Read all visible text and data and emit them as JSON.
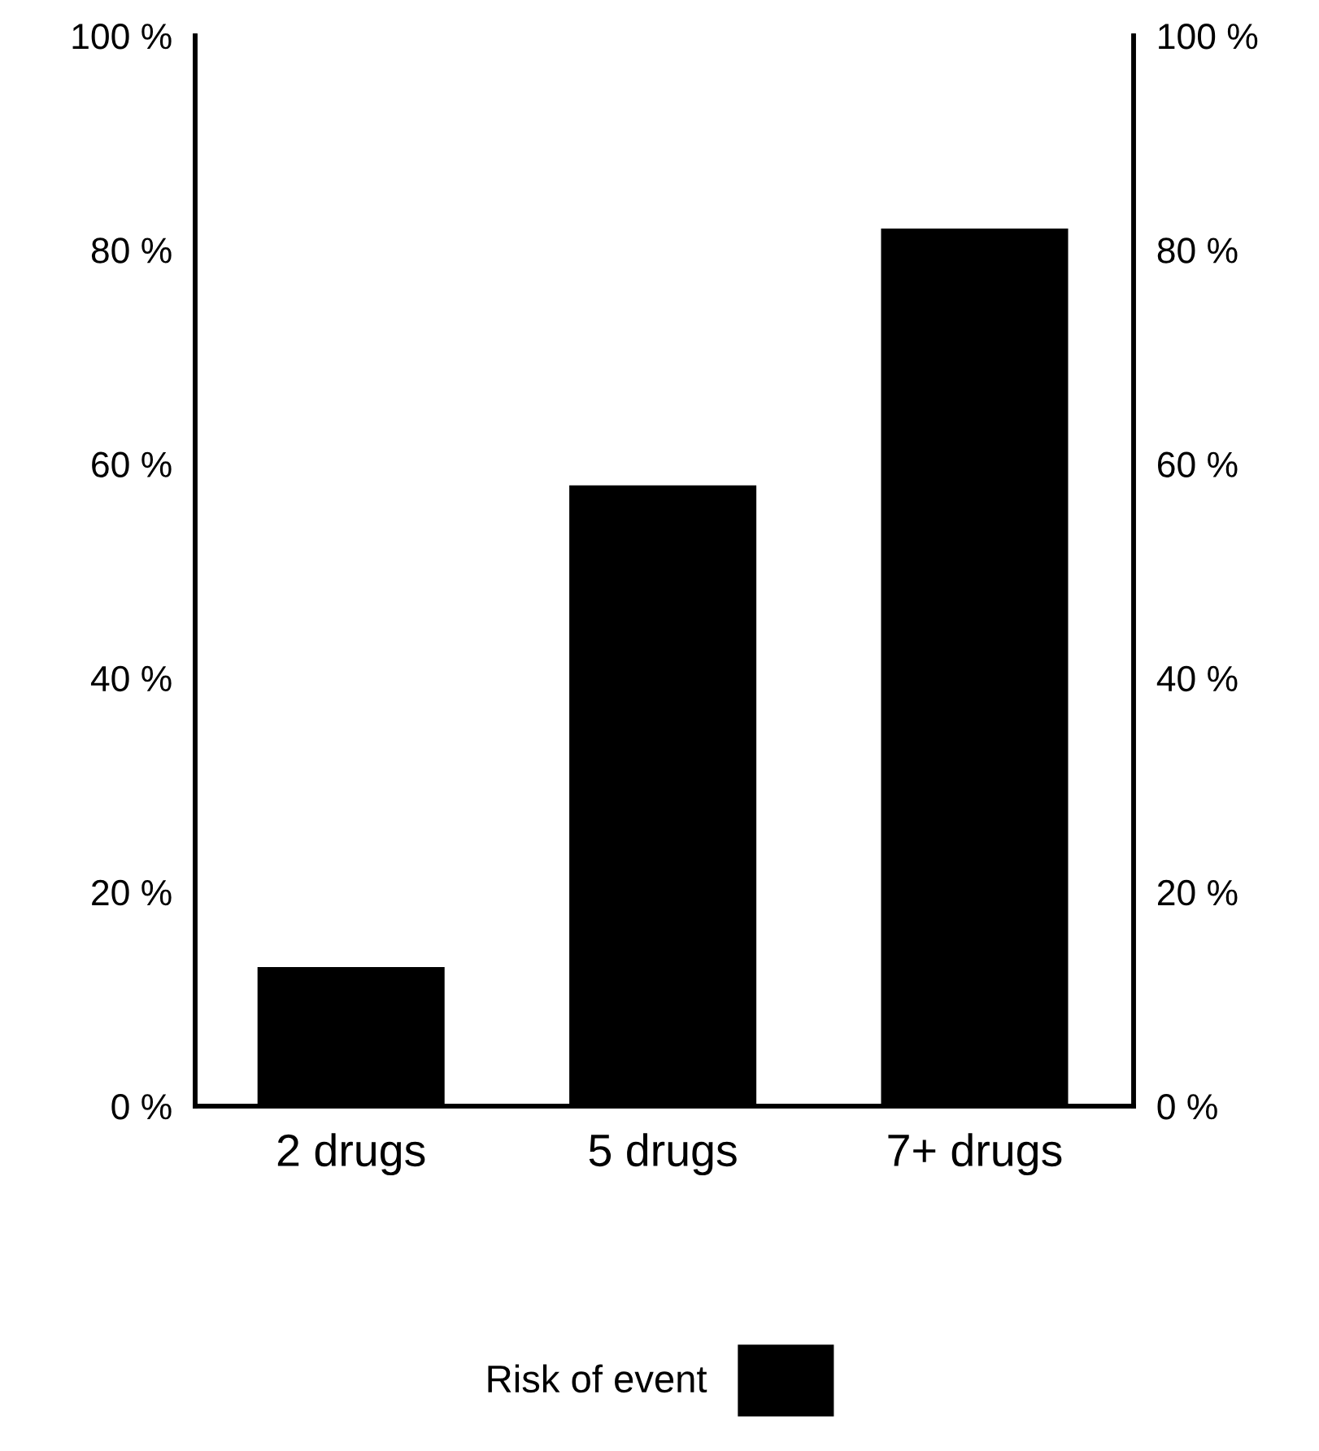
{
  "chart_data": {
    "type": "bar",
    "categories": [
      "2 drugs",
      "5 drugs",
      "7+ drugs"
    ],
    "series": [
      {
        "name": "Risk of event",
        "color": "#000000",
        "values": [
          13,
          58,
          82
        ]
      }
    ],
    "ylim": [
      0,
      100
    ],
    "yticks": [
      {
        "value": 0,
        "label": "0 %"
      },
      {
        "value": 20,
        "label": "20 %"
      },
      {
        "value": 40,
        "label": "40 %"
      },
      {
        "value": 60,
        "label": "60 %"
      },
      {
        "value": 80,
        "label": "80 %"
      },
      {
        "value": 100,
        "label": "100 %"
      }
    ],
    "y2lim": [
      0,
      100
    ],
    "y2ticks": [
      {
        "value": 0,
        "label": "0 %"
      },
      {
        "value": 20,
        "label": "20 %"
      },
      {
        "value": 40,
        "label": "40 %"
      },
      {
        "value": 60,
        "label": "60 %"
      },
      {
        "value": 80,
        "label": "80 %"
      },
      {
        "value": 100,
        "label": "100 %"
      }
    ],
    "grid": false,
    "legend": "bottom"
  }
}
